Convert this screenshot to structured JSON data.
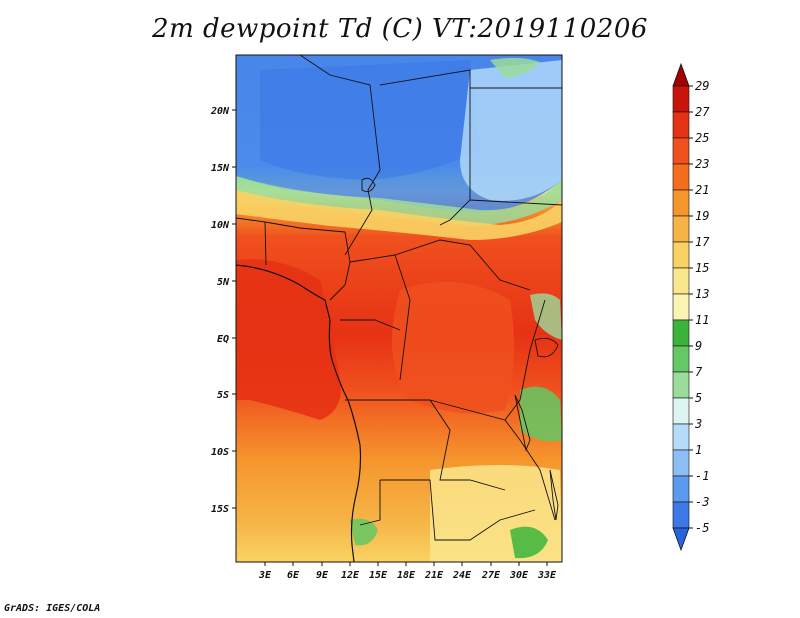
{
  "title": "2m dewpoint Td (C) VT:2019110206",
  "footer": "GrADS: IGES/COLA",
  "map": {
    "lat_labels": [
      "20N",
      "15N",
      "10N",
      "5N",
      "EQ",
      "5S",
      "10S",
      "15S"
    ],
    "lon_labels": [
      "3E",
      "6E",
      "9E",
      "12E",
      "15E",
      "18E",
      "21E",
      "24E",
      "27E",
      "30E",
      "33E"
    ]
  },
  "colorbar": {
    "labels": [
      "29",
      "27",
      "25",
      "23",
      "21",
      "19",
      "17",
      "15",
      "13",
      "11",
      "9",
      "7",
      "5",
      "3",
      "1",
      "-1",
      "-3",
      "-5"
    ],
    "colors": [
      "#a50000",
      "#c8140a",
      "#e63214",
      "#f0501e",
      "#f56e1e",
      "#f5962d",
      "#f7b446",
      "#fad264",
      "#fae68c",
      "#faf5b4",
      "#3cb43c",
      "#64c864",
      "#9bdc9b",
      "#dcf5f0",
      "#b4dcfa",
      "#8cbef5",
      "#5a9bf0",
      "#3c78e6",
      "#2864dc"
    ]
  }
}
